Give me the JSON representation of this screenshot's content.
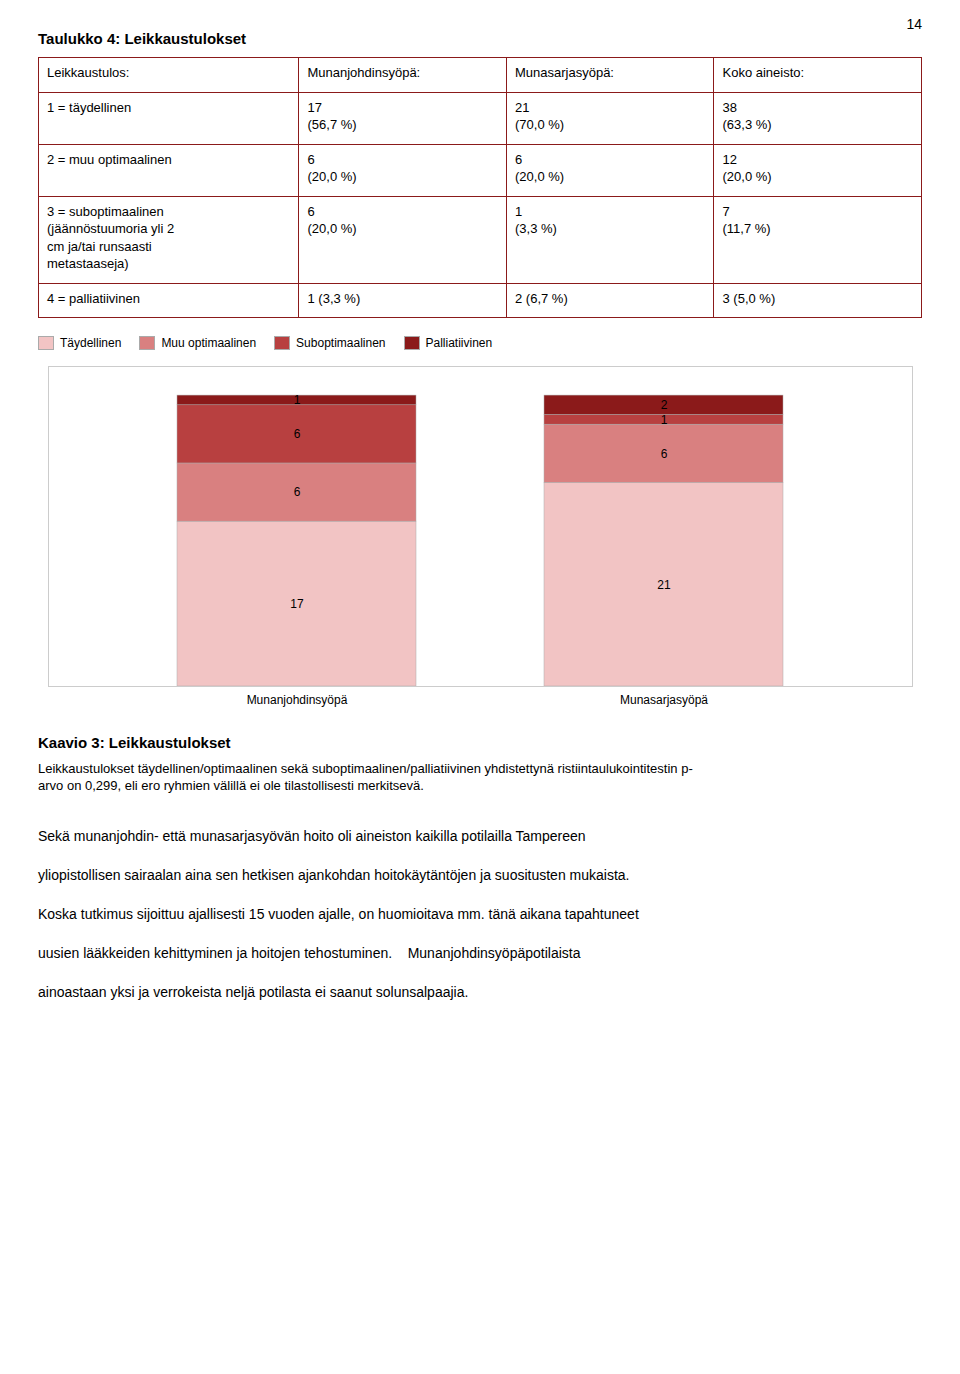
{
  "page_number": "14",
  "table": {
    "title": "Taulukko 4: Leikkaustulokset",
    "border_color": "#8b1a1a",
    "headers": [
      "Leikkaustulos:",
      "Munanjohdinsyöpä:",
      "Munasarjasyöpä:",
      "Koko aineisto:"
    ],
    "rows": [
      [
        "1 = täydellinen",
        "17\n(56,7 %)",
        "21\n(70,0 %)",
        "38\n(63,3 %)"
      ],
      [
        "2 = muu optimaalinen",
        "6\n(20,0 %)",
        "6\n(20,0 %)",
        "12\n(20,0 %)"
      ],
      [
        "3 = suboptimaalinen\n(jäännöstuumoria yli 2\ncm ja/tai runsaasti\nmetastaaseja)",
        "6\n(20,0 %)",
        "1\n(3,3 %)",
        "7\n(11,7 %)"
      ],
      [
        "4 = palliatiivinen",
        "1 (3,3 %)",
        "2 (6,7 %)",
        "3 (5,0 %)"
      ]
    ]
  },
  "chart_data": {
    "type": "bar",
    "title": "Kaavio 3: Leikkaustulokset",
    "caption": [
      "Leikkaustulokset täydellinen/optimaalinen sekä suboptimaalinen/palliatiivinen yhdistettynä ristiintaulukointitestin p-",
      "arvo on 0,299, eli ero ryhmien välillä ei ole tilastollisesti merkitsevä."
    ],
    "categories": [
      "Munanjohdinsyöpä",
      "Munasarjasyöpä"
    ],
    "series": [
      {
        "name": "Täydellinen",
        "color": "#f2c4c4",
        "values": [
          17,
          21
        ]
      },
      {
        "name": "Muu optimaalinen",
        "color": "#d98080",
        "values": [
          6,
          6
        ]
      },
      {
        "name": "Suboptimaalinen",
        "color": "#b84040",
        "values": [
          6,
          1
        ]
      },
      {
        "name": "Palliatiivinen",
        "color": "#8b1a1a",
        "values": [
          1,
          2
        ]
      }
    ],
    "stacked": true,
    "data_labels": true,
    "ylim": [
      0,
      33
    ],
    "tick_labels": "x",
    "grid": false,
    "legend": "upper left"
  },
  "body_lines": [
    "Sekä munanjohdin- että munasarjasyövän hoito oli aineiston kaikilla potilailla Tampereen",
    "yliopistollisen sairaalan aina sen hetkisen ajankohdan hoitokäytäntöjen ja suositusten mukaista.",
    "Koska tutkimus sijoittuu ajallisesti 15 vuoden ajalle, on huomioitava mm. tänä aikana tapahtuneet",
    "uusien lääkkeiden kehittyminen ja hoitojen tehostuminen.    Munanjohdinsyöpäpotilaista",
    "ainoastaan yksi ja verrokeista neljä potilasta ei saanut solunsalpaajia."
  ]
}
